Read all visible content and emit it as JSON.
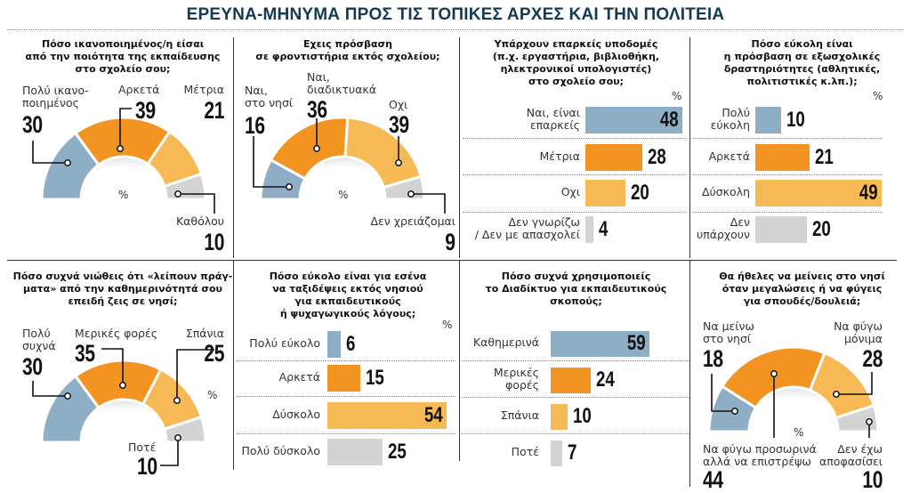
{
  "header": {
    "title": "ΕΡΕΥΝΑ-ΜΗΝΥΜΑ ΠΡΟΣ ΤΙΣ ΤΟΠΙΚΕΣ ΑΡΧΕΣ ΚΑΙ ΤΗΝ ΠΟΛΙΤΕΙΑ"
  },
  "colors": {
    "blue": "#8eaec6",
    "orange": "#f39321",
    "light_orange": "#f7b956",
    "gray": "#d3d3d3",
    "title": "#123a55"
  },
  "chart_data": [
    {
      "type": "pie",
      "shape": "semicircle-donut",
      "title": "Πόσο ικανοποιημένος/η είσαι\nαπό την ποιότητα της εκπαίδευσης\nστο σχολείο σου;",
      "unit": "%",
      "categories": [
        "Πολύ ικανο-\nποιημένος",
        "Αρκετά",
        "Μέτρια",
        "Καθόλου"
      ],
      "values": [
        30,
        39,
        21,
        10
      ]
    },
    {
      "type": "pie",
      "shape": "semicircle-donut",
      "title": "Εχεις πρόσβαση\nσε φροντιστήρια εκτός σχολείου;",
      "unit": "%",
      "categories": [
        "Ναι,\nστο νησί",
        "Ναι,\nδιαδικτυακά",
        "Οχι",
        "Δεν χρειάζομαι"
      ],
      "values": [
        16,
        36,
        39,
        9
      ]
    },
    {
      "type": "bar",
      "orientation": "horizontal",
      "title": "Υπάρχουν επαρκείς υποδομές\n(π.χ. εργαστήρια, βιβλιοθήκη,\nηλεκτρονικοί υπολογιστές)\nστο σχολείο σου;",
      "unit": "%",
      "categories": [
        "Ναι, είναι\nεπαρκείς",
        "Μέτρια",
        "Οχι",
        "Δεν γνωρίζω\n/ Δεν με απασχολεί"
      ],
      "values": [
        48,
        28,
        20,
        4
      ]
    },
    {
      "type": "bar",
      "orientation": "horizontal",
      "title": "Πόσο εύκολη είναι\nη πρόσβαση σε εξωσχολικές\nδραστηριότητες (αθλητικές,\nπολιτιστικές κ.λπ.);",
      "unit": "%",
      "categories": [
        "Πολύ\nεύκολη",
        "Αρκετά",
        "Δύσκολη",
        "Δεν\nυπάρχουν"
      ],
      "values": [
        10,
        21,
        49,
        20
      ]
    },
    {
      "type": "pie",
      "shape": "semicircle-donut",
      "title": "Πόσο συχνά νιώθεις ότι «λείπουν πράγ-\nματα» από την καθημερινότητά σου\nεπειδή ζεις σε νησί;",
      "unit": "%",
      "categories": [
        "Πολύ\nσυχνά",
        "Μερικές φορές",
        "Σπάνια",
        "Ποτέ"
      ],
      "values": [
        30,
        35,
        25,
        10
      ]
    },
    {
      "type": "bar",
      "orientation": "horizontal",
      "title": "Πόσο εύκολο είναι για εσένα\nνα ταξιδέψεις εκτός νησιού\nγια εκπαιδευτικούς\nή ψυχαγωγικούς λόγους;",
      "unit": "%",
      "categories": [
        "Πολύ εύκολο",
        "Αρκετά",
        "Δύσκολο",
        "Πολύ δύσκολο"
      ],
      "values": [
        6,
        15,
        54,
        25
      ]
    },
    {
      "type": "bar",
      "orientation": "horizontal",
      "title": "Πόσο συχνά χρησιμοποιείς\nτο Διαδίκτυο για εκπαιδευτικούς\nσκοπούς;",
      "categories": [
        "Καθημερινά",
        "Μερικές\nφορές",
        "Σπάνια",
        "Ποτέ"
      ],
      "values": [
        59,
        24,
        10,
        7
      ]
    },
    {
      "type": "pie",
      "shape": "semicircle-donut",
      "title": "Θα ήθελες να μείνεις στο νησί\nόταν μεγαλώσεις ή να φύγεις\nγια σπουδές/δουλειά;",
      "unit": "%",
      "categories": [
        "Να μείνω\nστο νησί",
        "Να φύγω προσωρινά\nαλλά να επιστρέψω",
        "Να φύγω\nμόνιμα",
        "Δεν έχω\nαποφασίσει"
      ],
      "values": [
        18,
        44,
        28,
        10
      ]
    }
  ]
}
